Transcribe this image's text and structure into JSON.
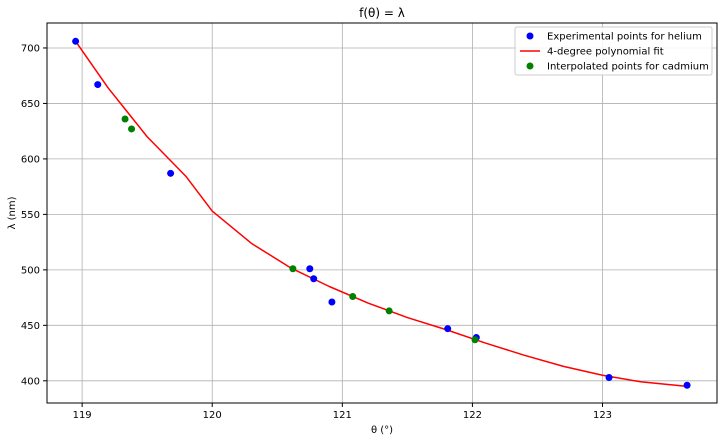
{
  "chart_data": {
    "type": "scatter",
    "title": "f(θ) = λ",
    "xlabel": "θ (°)",
    "ylabel": "λ (nm)",
    "xlim": [
      118.73,
      123.88
    ],
    "ylim": [
      380,
      722.5
    ],
    "xticks": [
      119,
      120,
      121,
      122,
      123
    ],
    "yticks": [
      400,
      450,
      500,
      550,
      600,
      650,
      700
    ],
    "grid": true,
    "legend_position": "top-right",
    "series": [
      {
        "name": "Experimental points for helium",
        "kind": "scatter",
        "color": "#0000ff",
        "points": [
          [
            118.95,
            706
          ],
          [
            119.12,
            667
          ],
          [
            119.68,
            587
          ],
          [
            120.75,
            501
          ],
          [
            120.78,
            492
          ],
          [
            120.92,
            471
          ],
          [
            121.81,
            447
          ],
          [
            122.03,
            439
          ],
          [
            123.05,
            403
          ],
          [
            123.65,
            396
          ]
        ]
      },
      {
        "name": "4-degree polynomial fit",
        "kind": "line",
        "color": "#ff0000",
        "points": [
          [
            118.95,
            706
          ],
          [
            119.2,
            664
          ],
          [
            119.5,
            620
          ],
          [
            119.8,
            584
          ],
          [
            120.0,
            553
          ],
          [
            120.3,
            524
          ],
          [
            120.6,
            502
          ],
          [
            120.9,
            485
          ],
          [
            121.2,
            470
          ],
          [
            121.5,
            457
          ],
          [
            121.8,
            446
          ],
          [
            122.1,
            434
          ],
          [
            122.4,
            423
          ],
          [
            122.7,
            413
          ],
          [
            123.0,
            405
          ],
          [
            123.3,
            399
          ],
          [
            123.65,
            395
          ]
        ]
      },
      {
        "name": "Interpolated points for cadmium",
        "kind": "scatter",
        "color": "#008000",
        "points": [
          [
            119.33,
            636
          ],
          [
            119.38,
            627
          ],
          [
            120.62,
            501
          ],
          [
            121.08,
            476
          ],
          [
            121.36,
            463
          ],
          [
            122.02,
            437
          ]
        ]
      }
    ]
  }
}
